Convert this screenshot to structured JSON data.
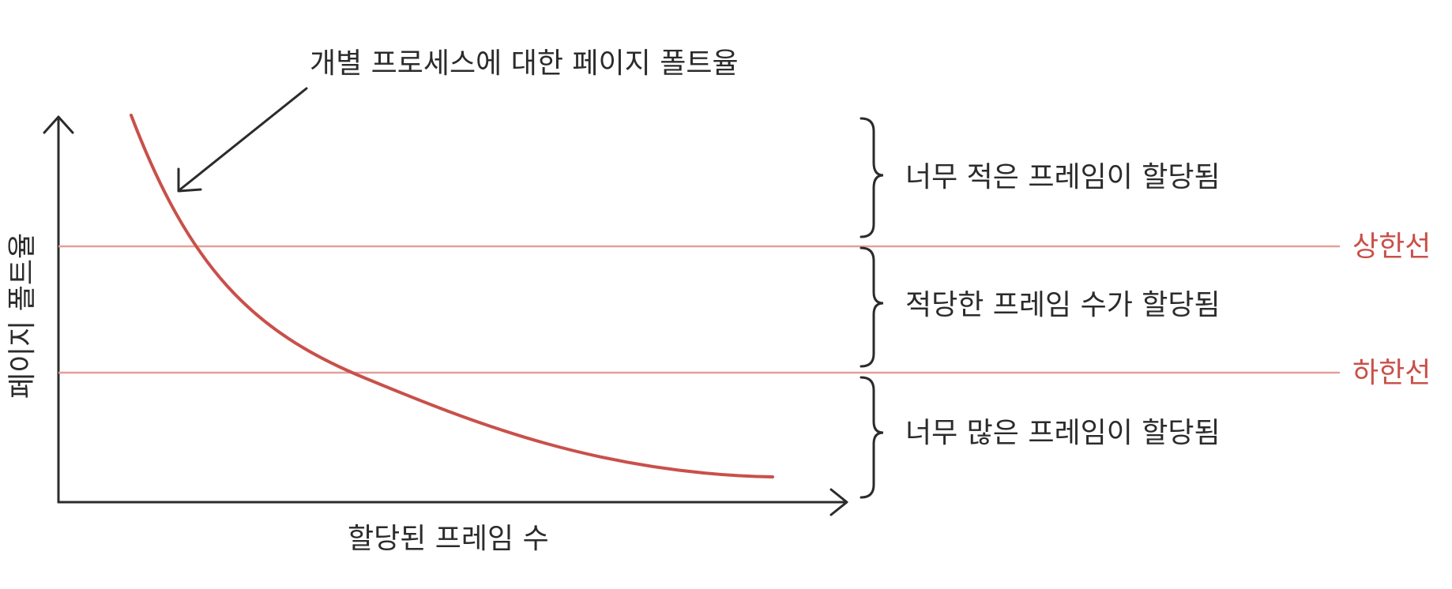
{
  "annotation": "개별 프로세스에 대한 페이지 폴트율",
  "x_axis_label": "할당된 프레임 수",
  "y_axis_label": "페이지 폴트율",
  "thresholds": {
    "upper": "상한선",
    "lower": "하한선"
  },
  "regions": {
    "top": "너무 적은 프레임이 할당됨",
    "middle": "적당한 프레임 수가 할당됨",
    "bottom": "너무 많은 프레임이 할당됨"
  },
  "colors": {
    "curve": "#c9504a",
    "threshold_line": "#e2a09c",
    "threshold_label": "#c9504a",
    "ink": "#2b2b2b"
  }
}
